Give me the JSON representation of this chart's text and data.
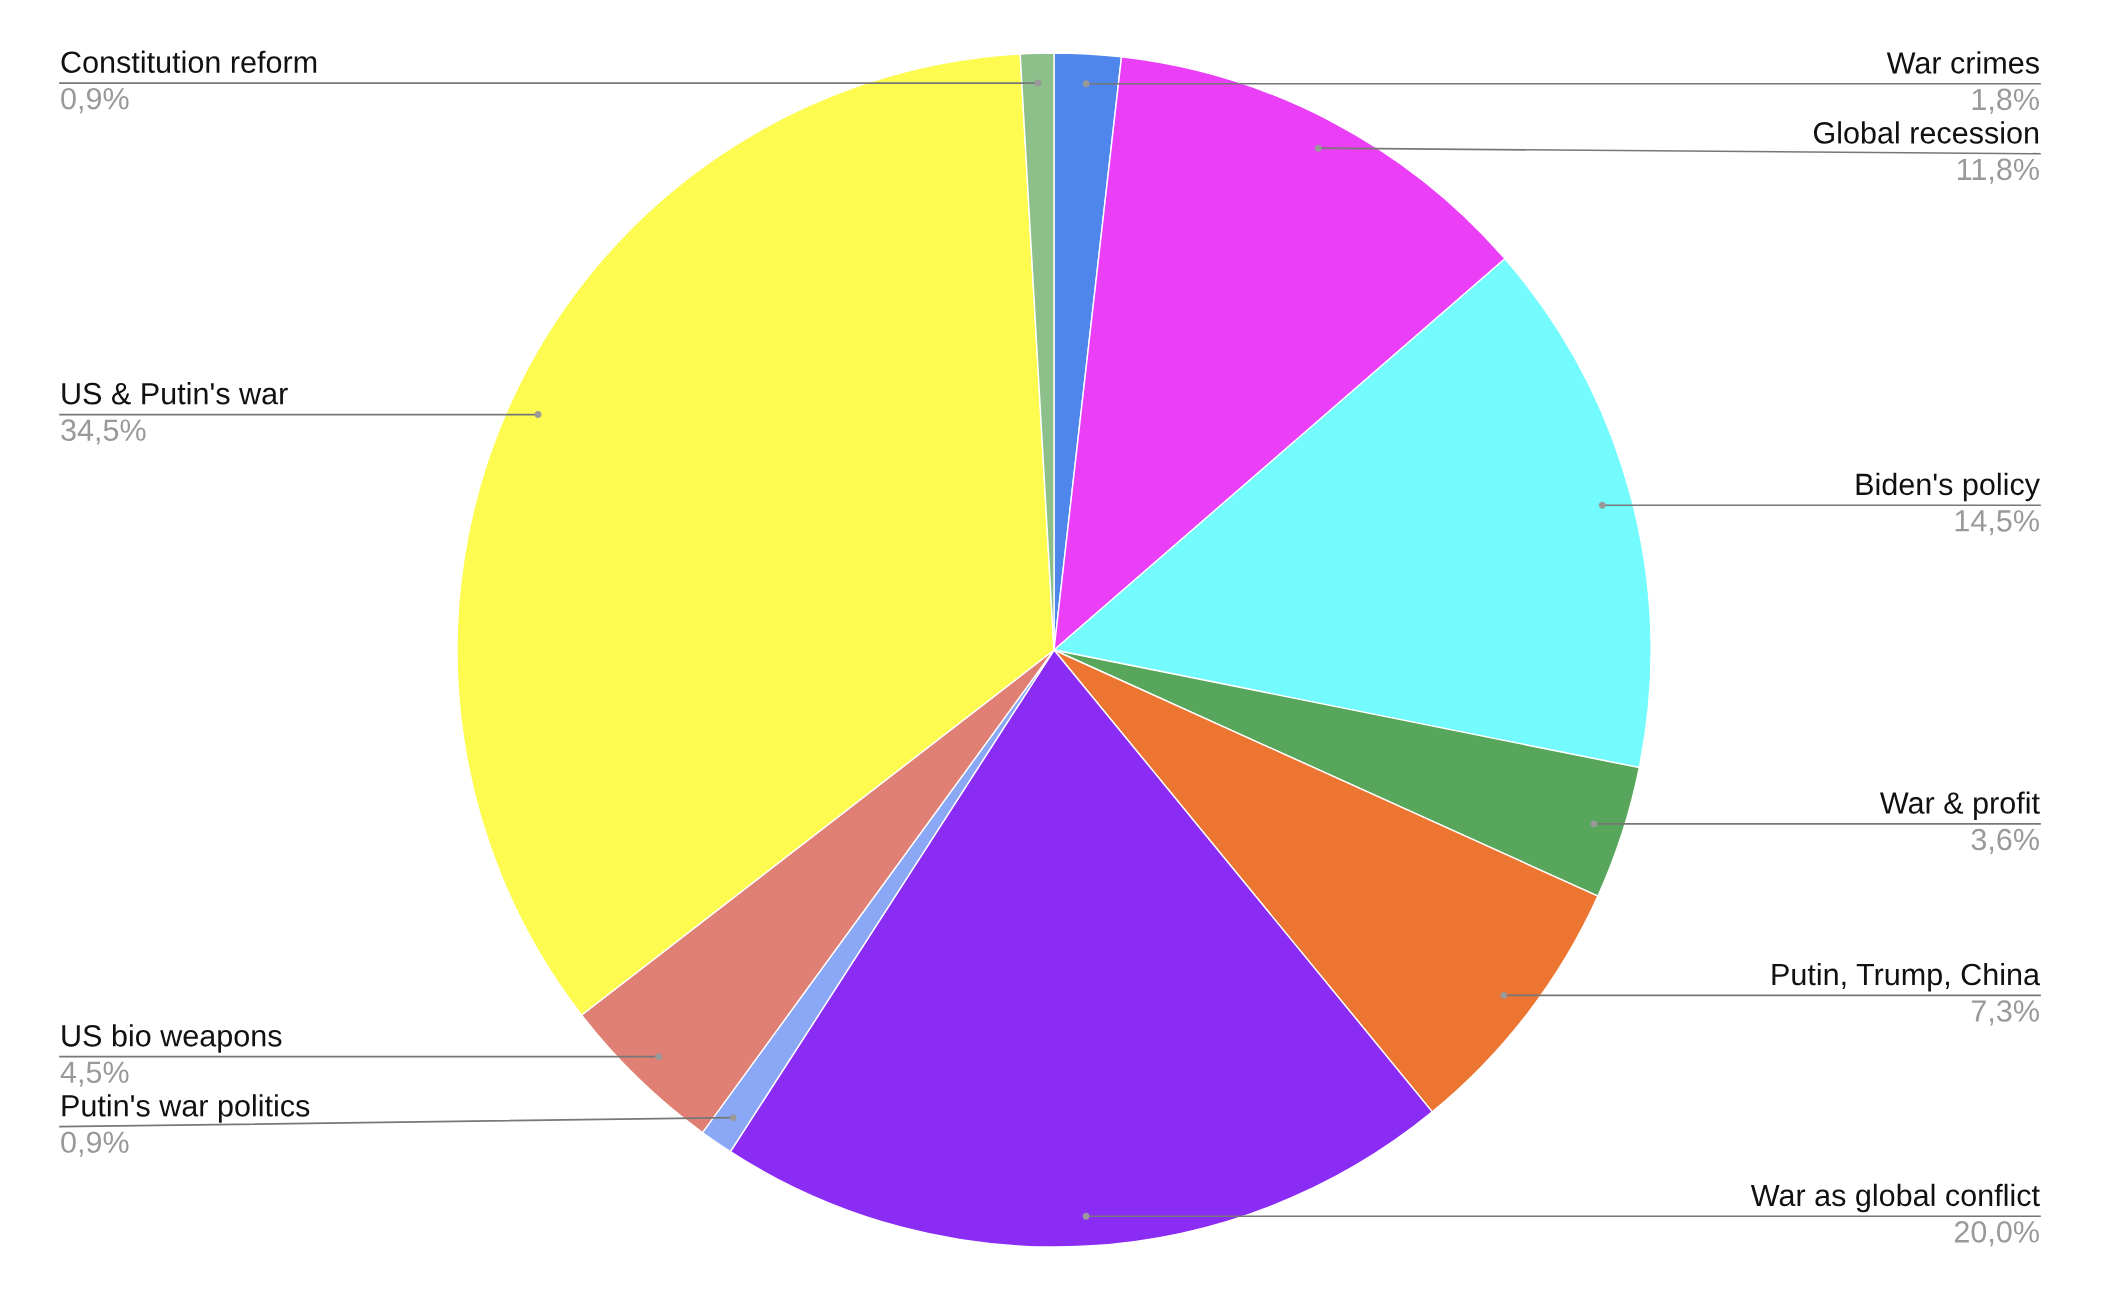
{
  "chart_data": {
    "type": "pie",
    "categories": [
      "War crimes",
      "Global recession",
      "Biden's policy",
      "War & profit",
      "Putin, Trump, China",
      "War as global conflict",
      "Putin's war politics",
      "US bio weapons",
      "US & Putin's war",
      "Constitution reform"
    ],
    "values": [
      1.8,
      11.8,
      14.5,
      3.6,
      7.3,
      20.0,
      0.9,
      4.5,
      34.5,
      0.9
    ],
    "colors": [
      "#4f86ec",
      "#ea3ef7",
      "#73fbfd",
      "#58a65c",
      "#ed7532",
      "#8b2cf5",
      "#8aa8f5",
      "#e07f73",
      "#fefb50",
      "#8dbf8b"
    ],
    "value_labels": [
      "1,8%",
      "11,8%",
      "14,5%",
      "3,6%",
      "7,3%",
      "20,0%",
      "0,9%",
      "4,5%",
      "34,5%",
      "0,9%"
    ]
  }
}
